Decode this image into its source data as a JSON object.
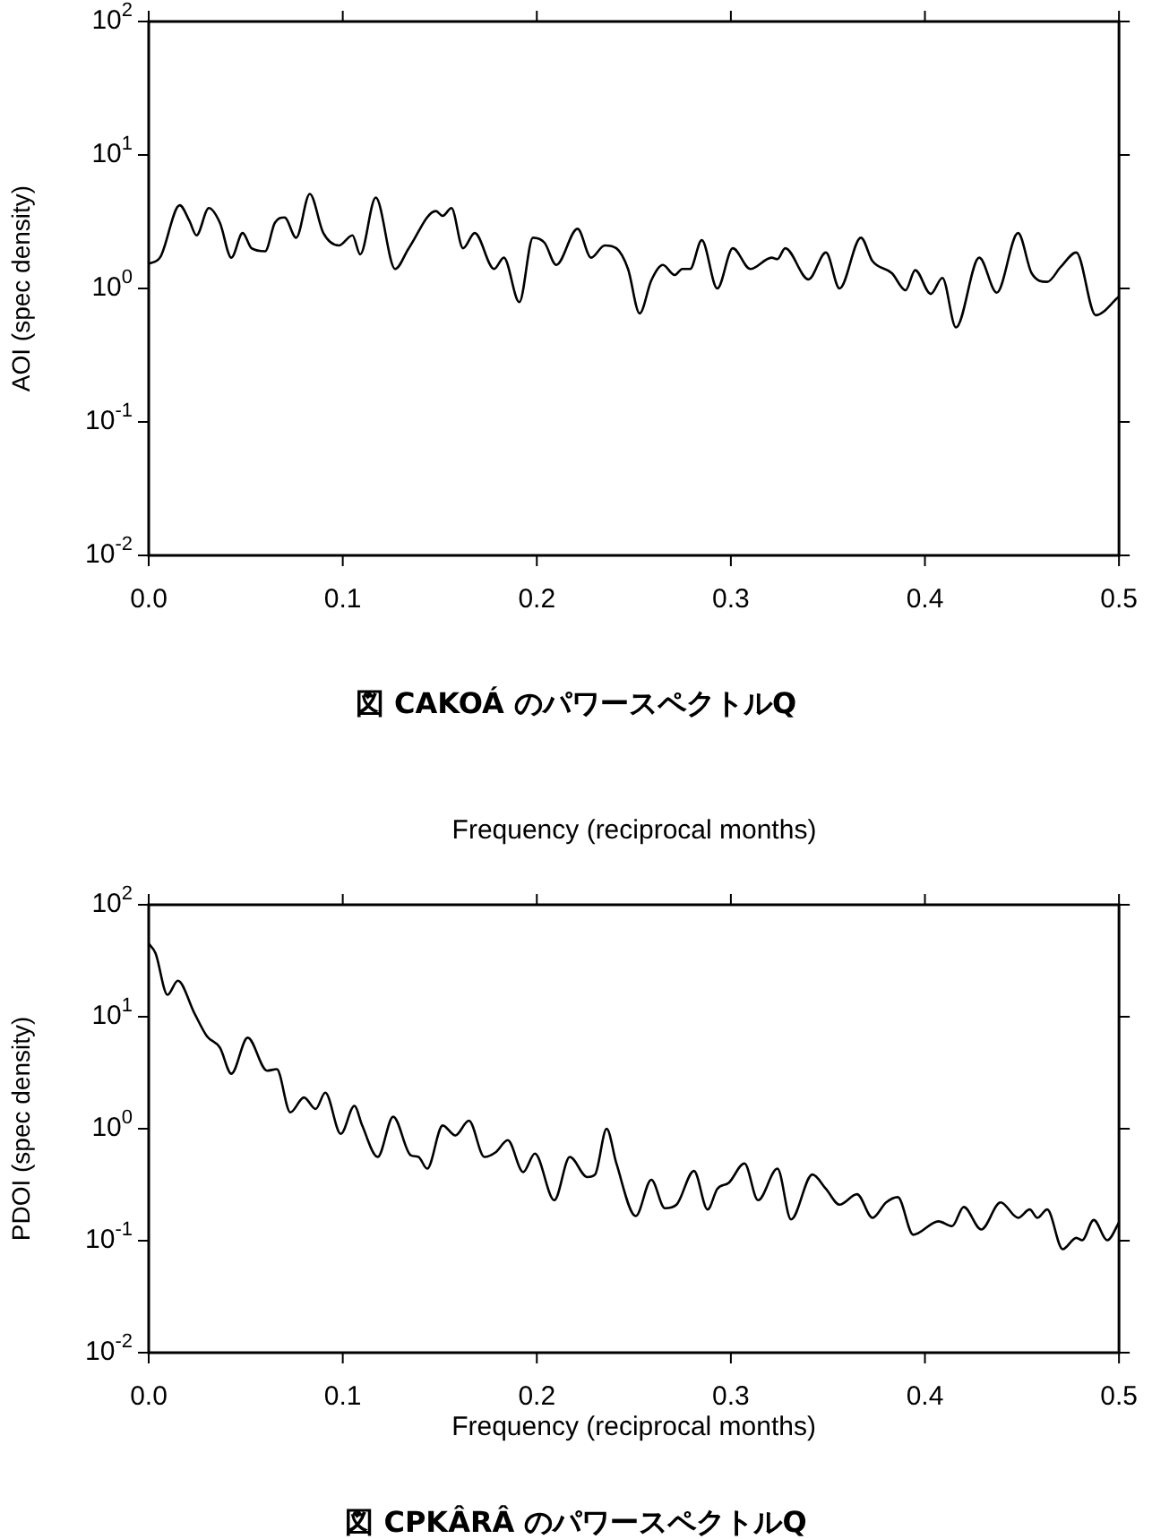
{
  "chart_data": [
    {
      "type": "line",
      "xlabel": "Frequency (reciprocal months)",
      "ylabel": "AOI (spec density)",
      "log": "y",
      "annotations": [
        "図 CAKOÁ のパワースペクトルQ"
      ],
      "xlim": [
        0,
        0.5
      ],
      "xticks": [
        {
          "value": 0,
          "label": "0.0"
        },
        {
          "value": 0.1,
          "label": "0.1"
        },
        {
          "value": 0.2,
          "label": "0.2"
        },
        {
          "value": 0.3,
          "label": "0.3"
        },
        {
          "value": 0.4,
          "label": "0.4"
        },
        {
          "value": 0.5,
          "label": "0.5"
        }
      ],
      "ylim": [
        0.01,
        100
      ],
      "yticks": [
        {
          "value": 0.01,
          "label": "10$^{-2}$"
        },
        {
          "value": 0.1,
          "label": "10$^{-1}$"
        },
        {
          "value": 1,
          "label": "10$^{0}$"
        },
        {
          "value": 10,
          "label": "10$^{1}$"
        },
        {
          "value": 100,
          "label": "10$^{2}$"
        }
      ],
      "x": [
        0,
        0.006,
        0.016,
        0.021,
        0.0246,
        0.031,
        0.0367,
        0.0426,
        0.0484,
        0.053,
        0.06,
        0.065,
        0.07,
        0.076,
        0.083,
        0.09,
        0.098,
        0.105,
        0.109,
        0.117,
        0.127,
        0.134,
        0.148,
        0.1515,
        0.156,
        0.162,
        0.168,
        0.178,
        0.183,
        0.191,
        0.198,
        0.204,
        0.21,
        0.221,
        0.228,
        0.235,
        0.241,
        0.247,
        0.253,
        0.259,
        0.265,
        0.271,
        0.275,
        0.279,
        0.285,
        0.293,
        0.301,
        0.31,
        0.321,
        0.324,
        0.328,
        0.34,
        0.349,
        0.356,
        0.367,
        0.373,
        0.383,
        0.39,
        0.395,
        0.403,
        0.409,
        0.416,
        0.428,
        0.437,
        0.448,
        0.455,
        0.463,
        0.47,
        0.478,
        0.488,
        0.5
      ],
      "series": [
        {
          "color": "#000000",
          "values": [
            1.53,
            1.72,
            4.2,
            3.2,
            2.5,
            4.0,
            3.1,
            1.7,
            2.6,
            2.0,
            1.9,
            3.1,
            3.4,
            2.4,
            5.1,
            2.6,
            2.1,
            2.5,
            1.8,
            4.8,
            1.4,
            2.0,
            3.8,
            3.5,
            4.0,
            2.0,
            2.6,
            1.4,
            1.7,
            0.79,
            2.4,
            2.2,
            1.5,
            2.8,
            1.7,
            2.1,
            2.0,
            1.4,
            0.65,
            1.15,
            1.5,
            1.26,
            1.4,
            1.4,
            2.3,
            1.0,
            2.0,
            1.4,
            1.7,
            1.66,
            2.0,
            1.17,
            1.86,
            1.0,
            2.4,
            1.6,
            1.3,
            0.97,
            1.37,
            0.91,
            1.2,
            0.51,
            1.7,
            0.93,
            2.6,
            1.3,
            1.12,
            1.45,
            1.86,
            0.63,
            0.87
          ]
        }
      ]
    },
    {
      "type": "line",
      "xlabel": "Frequency (reciprocal months)",
      "ylabel": "PDOI (spec density)",
      "log": "y",
      "annotations": [
        "図 CPKÂRÂ のパワースペクトルQ"
      ],
      "xlim": [
        0,
        0.5
      ],
      "xticks": [
        {
          "value": 0,
          "label": "0.0"
        },
        {
          "value": 0.1,
          "label": "0.1"
        },
        {
          "value": 0.2,
          "label": "0.2"
        },
        {
          "value": 0.3,
          "label": "0.3"
        },
        {
          "value": 0.4,
          "label": "0.4"
        },
        {
          "value": 0.5,
          "label": "0.5"
        }
      ],
      "ylim": [
        0.01,
        100
      ],
      "yticks": [
        {
          "value": 0.01,
          "label": "10$^{-2}$"
        },
        {
          "value": 0.1,
          "label": "10$^{-1}$"
        },
        {
          "value": 1,
          "label": "10$^{0}$"
        },
        {
          "value": 10,
          "label": "10$^{1}$"
        },
        {
          "value": 100,
          "label": "10$^{2}$"
        }
      ],
      "x": [
        0,
        0.0035,
        0.0097,
        0.015,
        0.0235,
        0.03,
        0.0367,
        0.0426,
        0.051,
        0.061,
        0.066,
        0.073,
        0.08,
        0.086,
        0.091,
        0.099,
        0.106,
        0.11,
        0.118,
        0.126,
        0.135,
        0.139,
        0.1435,
        0.1515,
        0.158,
        0.165,
        0.173,
        0.179,
        0.185,
        0.193,
        0.199,
        0.209,
        0.217,
        0.226,
        0.23,
        0.236,
        0.241,
        0.251,
        0.259,
        0.266,
        0.272,
        0.281,
        0.288,
        0.293,
        0.299,
        0.307,
        0.314,
        0.324,
        0.331,
        0.342,
        0.349,
        0.356,
        0.365,
        0.373,
        0.38,
        0.386,
        0.394,
        0.407,
        0.414,
        0.42,
        0.429,
        0.439,
        0.448,
        0.454,
        0.458,
        0.463,
        0.471,
        0.478,
        0.481,
        0.487,
        0.494,
        0.5
      ],
      "series": [
        {
          "color": "#000000",
          "values": [
            45,
            37,
            15.7,
            21,
            10.8,
            6.7,
            5.3,
            3.1,
            6.5,
            3.3,
            3.4,
            1.4,
            1.9,
            1.5,
            2.1,
            0.9,
            1.6,
            1.07,
            0.56,
            1.28,
            0.58,
            0.56,
            0.44,
            1.07,
            0.87,
            1.18,
            0.56,
            0.62,
            0.79,
            0.41,
            0.6,
            0.23,
            0.56,
            0.37,
            0.39,
            1.0,
            0.49,
            0.166,
            0.35,
            0.195,
            0.21,
            0.42,
            0.19,
            0.29,
            0.33,
            0.49,
            0.23,
            0.44,
            0.155,
            0.39,
            0.29,
            0.21,
            0.26,
            0.16,
            0.22,
            0.245,
            0.113,
            0.149,
            0.135,
            0.2,
            0.126,
            0.22,
            0.16,
            0.19,
            0.16,
            0.19,
            0.084,
            0.106,
            0.101,
            0.153,
            0.101,
            0.145
          ]
        }
      ]
    }
  ]
}
